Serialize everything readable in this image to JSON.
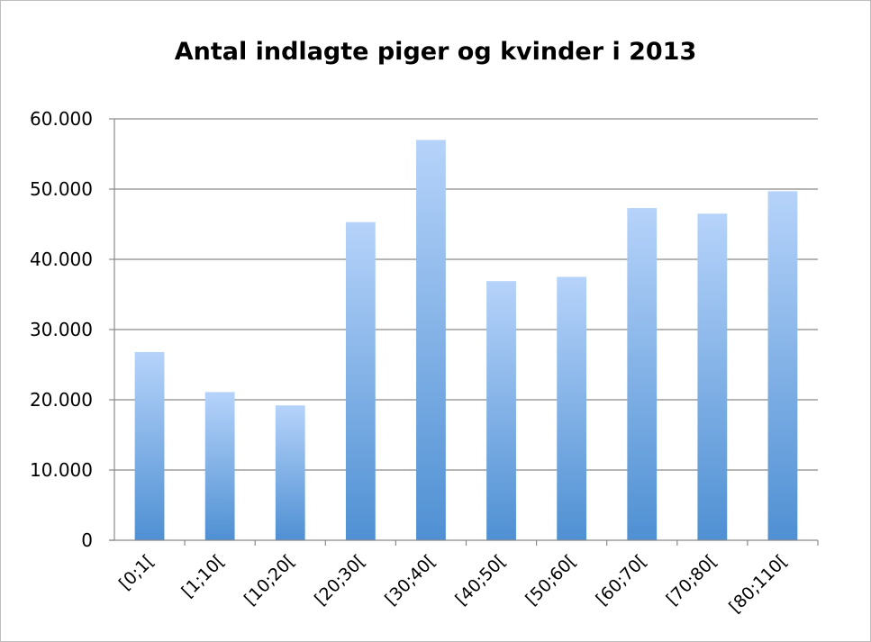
{
  "chart_data": {
    "type": "bar",
    "title": "Antal indlagte piger og kvinder i 2013",
    "xlabel": "",
    "ylabel": "",
    "categories": [
      "[0;1[",
      "[1;10[",
      "[10;20[",
      "[20;30[",
      "[30;40[",
      "[40;50[",
      "[50;60[",
      "[60;70[",
      "[70;80[",
      "[80;110["
    ],
    "series": [
      {
        "values": [
          26800,
          21100,
          19200,
          45300,
          57000,
          36900,
          37500,
          47300,
          46500,
          49700
        ]
      }
    ],
    "ylim": [
      0,
      60000
    ],
    "yticks": [
      0,
      10000,
      20000,
      30000,
      40000,
      50000,
      60000
    ],
    "ytick_labels": [
      "0",
      "10.000",
      "20.000",
      "30.000",
      "40.000",
      "50.000",
      "60.000"
    ],
    "grid": true,
    "legend": "none",
    "colors": {
      "bar_top": "#b6d3fa",
      "bar_bottom": "#4f90d3",
      "grid": "#8a8a8a"
    }
  }
}
